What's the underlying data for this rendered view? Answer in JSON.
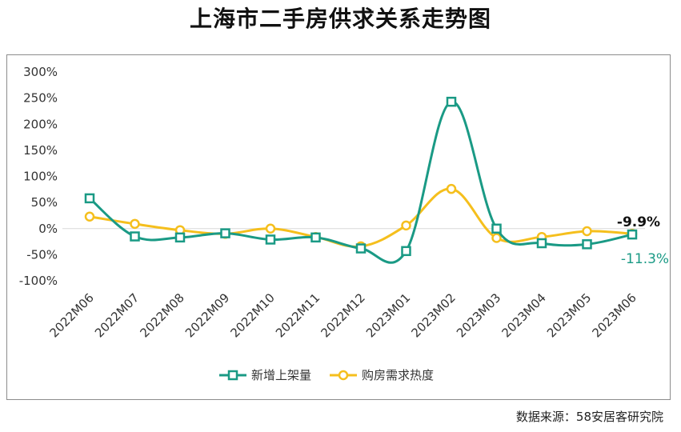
{
  "title": "上海市二手房供求关系走势图",
  "source": "数据来源：58安居客研究院",
  "chart_data": {
    "type": "line",
    "title": "上海市二手房供求关系走势图",
    "categories": [
      "2022M06",
      "2022M07",
      "2022M08",
      "2022M09",
      "2022M10",
      "2022M11",
      "2022M12",
      "2023M01",
      "2023M02",
      "2023M03",
      "2023M04",
      "2023M05",
      "2023M06"
    ],
    "y_ticks": [
      "300%",
      "250%",
      "200%",
      "150%",
      "100%",
      "50%",
      "0%",
      "-50%",
      "-100%"
    ],
    "ylim": [
      -100,
      300
    ],
    "grid": false,
    "legend_position": "bottom",
    "series": [
      {
        "name": "新增上架量",
        "color": "#1a9a85",
        "marker": "square",
        "values": [
          58,
          -15,
          -17,
          -9,
          -21,
          -17,
          -38,
          -43,
          243,
          0,
          -28,
          -30,
          -11.3
        ],
        "end_label": "-11.3%"
      },
      {
        "name": "购房需求热度",
        "color": "#f5bf1d",
        "marker": "circle",
        "values": [
          23,
          9,
          -3,
          -10,
          0,
          -16,
          -34,
          6,
          76,
          -18,
          -16,
          -5,
          -9.9
        ],
        "end_label": "-9.9%"
      }
    ]
  }
}
